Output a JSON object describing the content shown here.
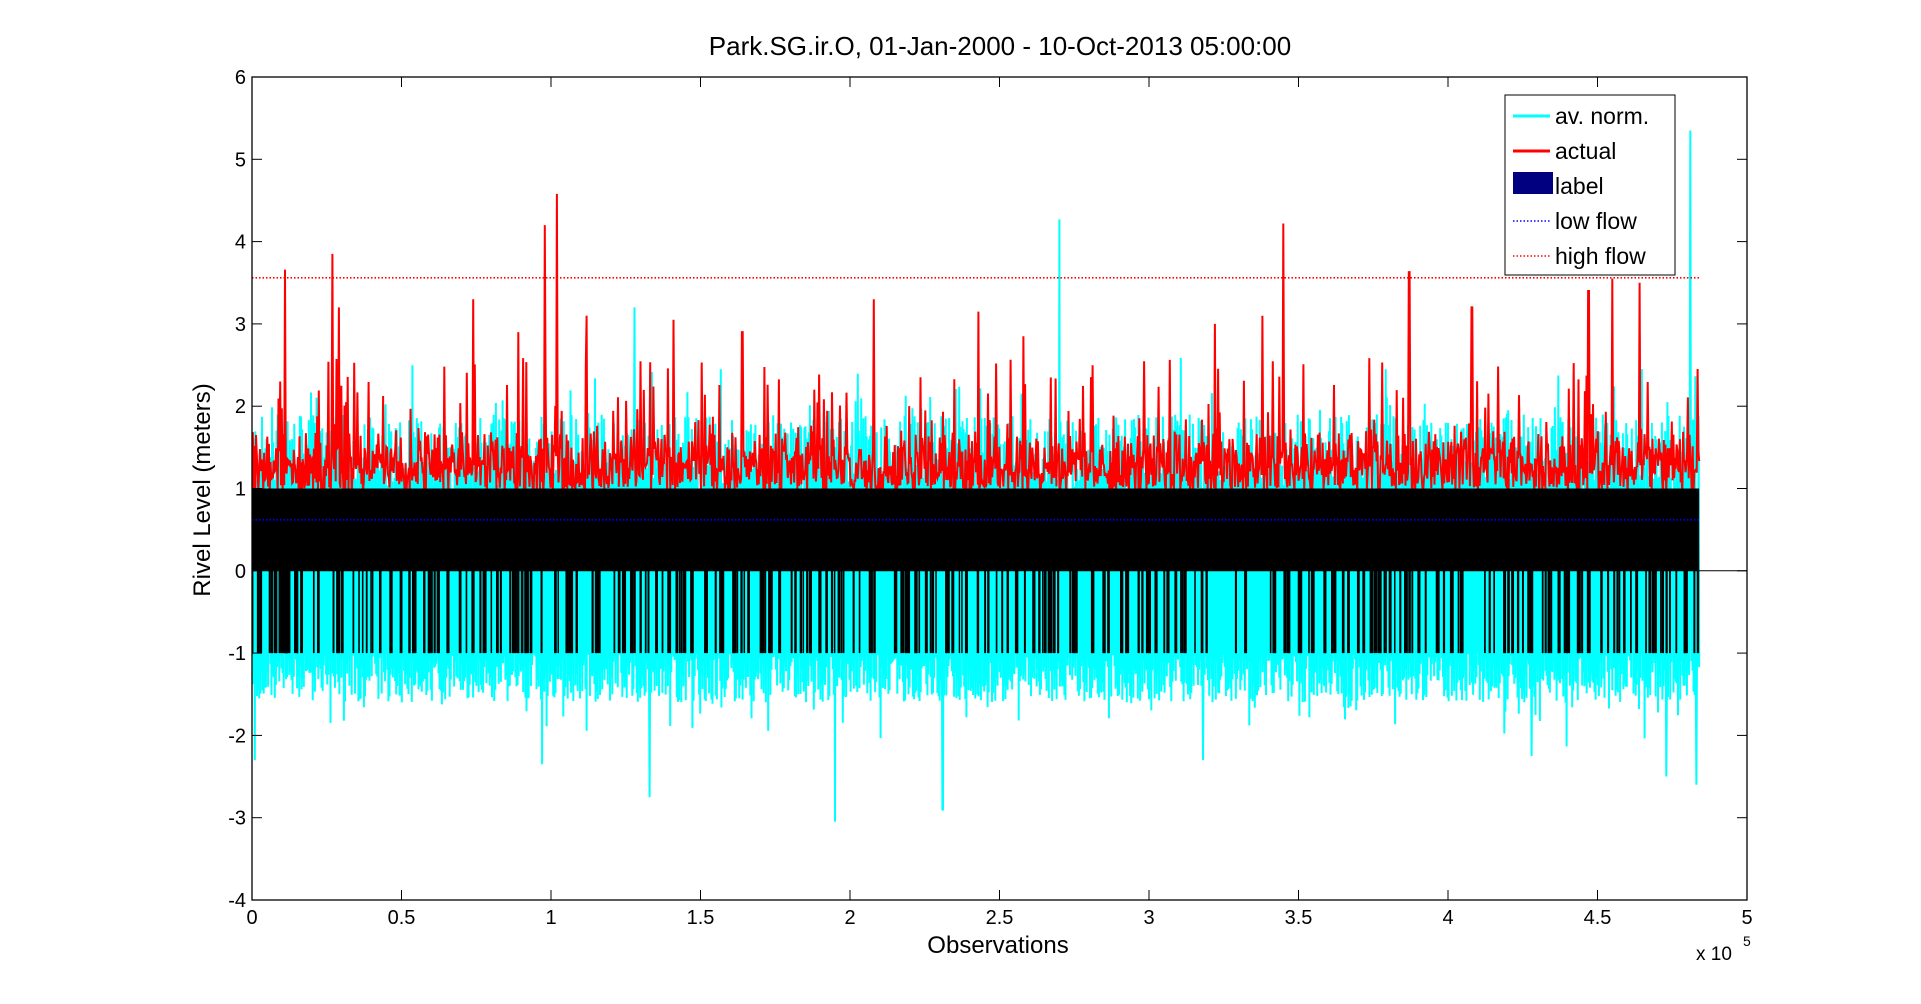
{
  "chart_data": {
    "type": "line",
    "title": "Park.SG.ir.O, 01-Jan-2000 - 10-Oct-2013 05:00:00",
    "xlabel": "Observations",
    "ylabel": "Rivel Level (meters)",
    "x_exponent_label": "x 10",
    "x_exponent_power": "5",
    "xlim": [
      0,
      5
    ],
    "ylim": [
      -4,
      6
    ],
    "x_end": 4.84,
    "xticks": [
      0,
      0.5,
      1,
      1.5,
      2,
      2.5,
      3,
      3.5,
      4,
      4.5,
      5
    ],
    "xtick_labels": [
      "0",
      "0.5",
      "1",
      "1.5",
      "2",
      "2.5",
      "3",
      "3.5",
      "4",
      "4.5",
      "5"
    ],
    "yticks": [
      -4,
      -3,
      -2,
      -1,
      0,
      1,
      2,
      3,
      4,
      5,
      6
    ],
    "ytick_labels": [
      "-4",
      "-3",
      "-2",
      "-1",
      "0",
      "1",
      "2",
      "3",
      "4",
      "5",
      "6"
    ],
    "grid": false,
    "legend_position": "top-right",
    "series": [
      {
        "name": "av. norm.",
        "kind": "line",
        "color": "#00FFFF",
        "typical_range": [
          -1.6,
          1.9
        ],
        "peaks": [
          {
            "x": 0.01,
            "y": -2.3
          },
          {
            "x": 0.11,
            "y": 2.55
          },
          {
            "x": 0.97,
            "y": -2.35
          },
          {
            "x": 1.28,
            "y": 3.2
          },
          {
            "x": 1.33,
            "y": -2.75
          },
          {
            "x": 1.95,
            "y": -3.05
          },
          {
            "x": 2.31,
            "y": -2.9
          },
          {
            "x": 2.7,
            "y": 4.27
          },
          {
            "x": 3.18,
            "y": -2.3
          },
          {
            "x": 4.28,
            "y": -2.25
          },
          {
            "x": 4.73,
            "y": -2.5
          },
          {
            "x": 4.81,
            "y": 5.35
          },
          {
            "x": 4.83,
            "y": -2.6
          }
        ]
      },
      {
        "name": "actual",
        "kind": "line",
        "color": "#FF0000",
        "peaks": [
          {
            "x": 0.11,
            "y": 3.66
          },
          {
            "x": 0.27,
            "y": 3.85
          },
          {
            "x": 0.29,
            "y": 3.2
          },
          {
            "x": 0.74,
            "y": 3.3
          },
          {
            "x": 0.89,
            "y": 2.9
          },
          {
            "x": 0.98,
            "y": 4.2
          },
          {
            "x": 1.02,
            "y": 4.58
          },
          {
            "x": 1.12,
            "y": 3.1
          },
          {
            "x": 1.41,
            "y": 3.05
          },
          {
            "x": 1.64,
            "y": 2.9
          },
          {
            "x": 2.08,
            "y": 3.3
          },
          {
            "x": 2.43,
            "y": 3.15
          },
          {
            "x": 2.58,
            "y": 2.85
          },
          {
            "x": 3.22,
            "y": 3.0
          },
          {
            "x": 3.38,
            "y": 3.1
          },
          {
            "x": 3.45,
            "y": 4.22
          },
          {
            "x": 3.87,
            "y": 3.63
          },
          {
            "x": 4.08,
            "y": 3.2
          },
          {
            "x": 4.47,
            "y": 3.4
          },
          {
            "x": 4.55,
            "y": 3.55
          },
          {
            "x": 4.64,
            "y": 3.5
          }
        ]
      },
      {
        "name": "label",
        "kind": "bar",
        "color": "#000080",
        "rendered_color": "#000000",
        "levels": [
          -1,
          0,
          1
        ]
      },
      {
        "name": "low flow",
        "kind": "dotted",
        "color": "#0000FF",
        "value": 0.62
      },
      {
        "name": "high flow",
        "kind": "dotted",
        "color": "#FF0000",
        "value": 3.56
      }
    ]
  }
}
